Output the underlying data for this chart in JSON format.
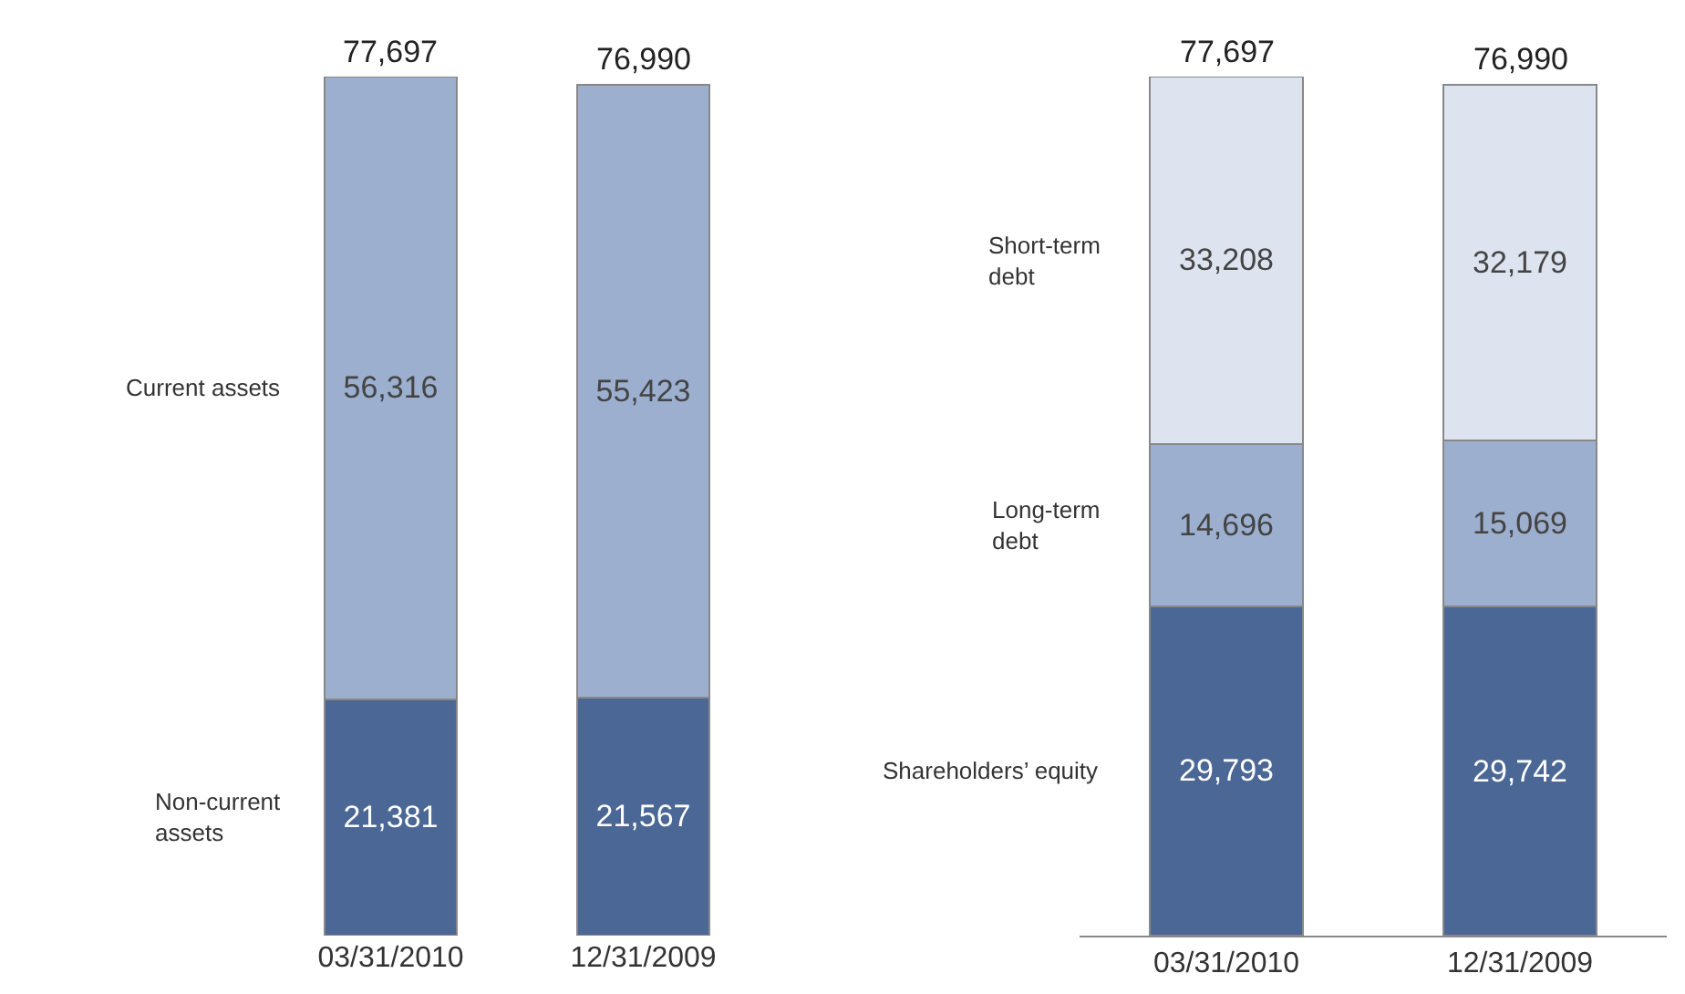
{
  "chart_data": [
    {
      "type": "bar",
      "stacked": true,
      "categories": [
        "03/31/2010",
        "12/31/2009"
      ],
      "legend": false,
      "grid": false,
      "totals": [
        "77,697",
        "76,990"
      ],
      "series": [
        {
          "name": "Non-current assets",
          "color": "#4a6796",
          "values": [
            21381,
            21567
          ],
          "value_labels": [
            "21,381",
            "21,567"
          ]
        },
        {
          "name": "Current assets",
          "color": "#9cafcf",
          "values": [
            56316,
            55423
          ],
          "value_labels": [
            "56,316",
            "55,423"
          ]
        }
      ]
    },
    {
      "type": "bar",
      "stacked": true,
      "categories": [
        "03/31/2010",
        "12/31/2009"
      ],
      "legend": false,
      "grid": false,
      "totals": [
        "77,697",
        "76,990"
      ],
      "series": [
        {
          "name": "Shareholders’ equity",
          "color": "#4a6796",
          "values": [
            29793,
            29742
          ],
          "value_labels": [
            "29,793",
            "29,742"
          ]
        },
        {
          "name": "Long-term debt",
          "color": "#9cafcf",
          "values": [
            14696,
            15069
          ],
          "value_labels": [
            "14,696",
            "15,069"
          ]
        },
        {
          "name": "Short-term debt",
          "color": "#dde4f0",
          "values": [
            33208,
            32179
          ],
          "value_labels": [
            "33,208",
            "32,179"
          ]
        }
      ]
    }
  ]
}
